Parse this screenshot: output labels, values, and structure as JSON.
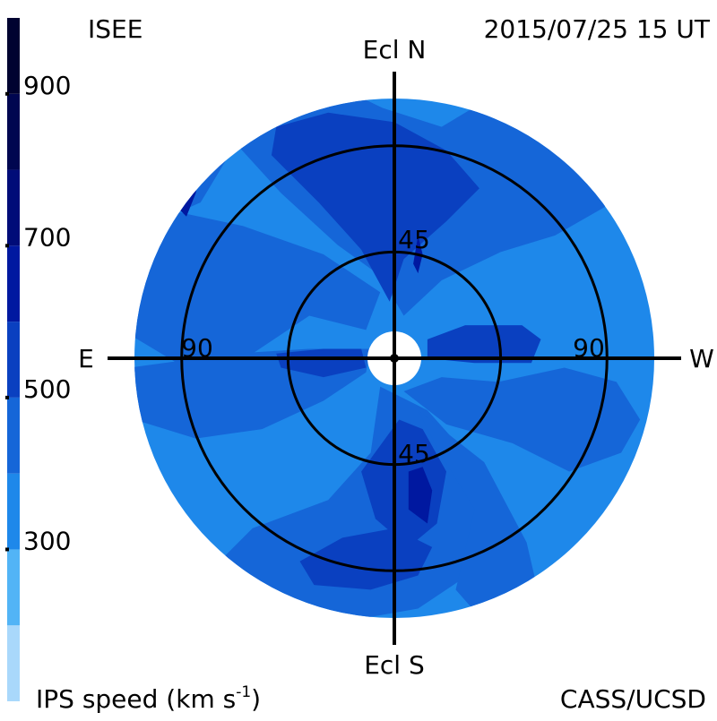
{
  "header": {
    "source": "ISEE",
    "timestamp": "2015/07/25 15 UT"
  },
  "footer": {
    "colorbar_label": "IPS speed (km s",
    "colorbar_unit_exp": "-1",
    "colorbar_label_end": ")",
    "credit": "CASS/UCSD"
  },
  "colors": {
    "background": "#ffffff",
    "axis_black": "#000000"
  },
  "chart_data": {
    "type": "heatmap",
    "projection": "polar sky map centred on the Sun",
    "axes": {
      "north": "Ecl N",
      "south": "Ecl S",
      "east": "E",
      "west": "W"
    },
    "elongation_rings": [
      {
        "value": 45,
        "labels": [
          "45",
          "45"
        ]
      },
      {
        "value": 90,
        "labels": [
          "90",
          "90"
        ]
      }
    ],
    "max_elongation": 110,
    "colorbar": {
      "tick_labels": [
        "900",
        "700",
        "500",
        "300"
      ],
      "tick_values": [
        900,
        700,
        500,
        300
      ],
      "range": [
        100,
        1000
      ],
      "bands": [
        {
          "from": 100,
          "to": 200,
          "color": "#a9d8fb"
        },
        {
          "from": 200,
          "to": 300,
          "color": "#52b4f6"
        },
        {
          "from": 300,
          "to": 400,
          "color": "#1e88ea"
        },
        {
          "from": 400,
          "to": 500,
          "color": "#1566d8"
        },
        {
          "from": 500,
          "to": 600,
          "color": "#0a40c0"
        },
        {
          "from": 600,
          "to": 700,
          "color": "#0018a0"
        },
        {
          "from": 700,
          "to": 800,
          "color": "#000c78"
        },
        {
          "from": 800,
          "to": 900,
          "color": "#000650"
        },
        {
          "from": 900,
          "to": 1000,
          "color": "#000230"
        }
      ]
    },
    "background_speed": 350,
    "regions": [
      {
        "name": "fast-lobe-north-west",
        "speed": 450,
        "points": [
          [
            -70,
            118
          ],
          [
            -36,
            121
          ],
          [
            -5,
            106
          ],
          [
            20,
            98
          ],
          [
            50,
            116
          ],
          [
            78,
            112
          ],
          [
            98,
            88
          ],
          [
            89,
            64
          ],
          [
            68,
            52
          ],
          [
            45,
            45
          ],
          [
            20,
            33
          ],
          [
            4,
            18
          ],
          [
            -6,
            35
          ],
          [
            -24,
            48
          ],
          [
            -48,
            70
          ],
          [
            -68,
            92
          ]
        ]
      },
      {
        "name": "fast-lobe-north-west-outer",
        "speed": 450,
        "points": [
          [
            -108,
            68
          ],
          [
            -114,
            98
          ],
          [
            -86,
            104
          ],
          [
            -70,
            86
          ],
          [
            -82,
            66
          ],
          [
            -100,
            58
          ]
        ]
      },
      {
        "name": "fast-lobe-north-east",
        "speed": 450,
        "points": [
          [
            -110,
            44
          ],
          [
            -112,
            10
          ],
          [
            -92,
            -2
          ],
          [
            -60,
            2
          ],
          [
            -36,
            18
          ],
          [
            -12,
            12
          ],
          [
            -6,
            28
          ],
          [
            -30,
            44
          ],
          [
            -64,
            56
          ],
          [
            -92,
            62
          ]
        ]
      },
      {
        "name": "fast-lobe-east",
        "speed": 450,
        "points": [
          [
            -112,
            -4
          ],
          [
            -110,
            -26
          ],
          [
            -84,
            -34
          ],
          [
            -56,
            -30
          ],
          [
            -30,
            -18
          ],
          [
            -12,
            -6
          ],
          [
            -10,
            4
          ],
          [
            -36,
            4
          ],
          [
            -68,
            2
          ]
        ]
      },
      {
        "name": "fast-lobe-south-west",
        "speed": 450,
        "points": [
          [
            4,
            -14
          ],
          [
            22,
            -28
          ],
          [
            50,
            -36
          ],
          [
            74,
            -48
          ],
          [
            96,
            -40
          ],
          [
            104,
            -26
          ],
          [
            94,
            -10
          ],
          [
            72,
            -4
          ],
          [
            44,
            -10
          ],
          [
            20,
            -8
          ]
        ]
      },
      {
        "name": "fast-lobe-south",
        "speed": 450,
        "points": [
          [
            -6,
            -12
          ],
          [
            -10,
            -40
          ],
          [
            -28,
            -60
          ],
          [
            -60,
            -72
          ],
          [
            -78,
            -90
          ],
          [
            -60,
            -108
          ],
          [
            -24,
            -112
          ],
          [
            10,
            -106
          ],
          [
            28,
            -94
          ],
          [
            40,
            -66
          ],
          [
            30,
            -40
          ],
          [
            14,
            -22
          ]
        ]
      },
      {
        "name": "fast-lobe-south-east",
        "speed": 450,
        "points": [
          [
            10,
            -22
          ],
          [
            38,
            -44
          ],
          [
            56,
            -78
          ],
          [
            62,
            -104
          ],
          [
            40,
            -114
          ],
          [
            26,
            -98
          ],
          [
            34,
            -64
          ],
          [
            18,
            -38
          ]
        ]
      },
      {
        "name": "faster-lobe-north",
        "speed": 550,
        "points": [
          [
            -52,
            86
          ],
          [
            -50,
            98
          ],
          [
            -28,
            104
          ],
          [
            0,
            100
          ],
          [
            22,
            88
          ],
          [
            36,
            72
          ],
          [
            22,
            58
          ],
          [
            4,
            42
          ],
          [
            -2,
            24
          ],
          [
            -14,
            46
          ],
          [
            -32,
            66
          ]
        ]
      },
      {
        "name": "faster-lobe-east",
        "speed": 550,
        "points": [
          [
            -50,
            2
          ],
          [
            -48,
            -4
          ],
          [
            -30,
            -8
          ],
          [
            -12,
            -4
          ],
          [
            -14,
            4
          ],
          [
            -30,
            4
          ]
        ]
      },
      {
        "name": "faster-lobe-west",
        "speed": 550,
        "points": [
          [
            14,
            8
          ],
          [
            30,
            14
          ],
          [
            54,
            14
          ],
          [
            62,
            8
          ],
          [
            58,
            -2
          ],
          [
            34,
            -2
          ],
          [
            14,
            0
          ]
        ]
      },
      {
        "name": "faster-lobe-south-inner",
        "speed": 550,
        "points": [
          [
            2,
            -26
          ],
          [
            -14,
            -48
          ],
          [
            -8,
            -68
          ],
          [
            6,
            -80
          ],
          [
            18,
            -70
          ],
          [
            22,
            -48
          ],
          [
            12,
            -30
          ]
        ]
      },
      {
        "name": "faster-lobe-south-outer",
        "speed": 550,
        "points": [
          [
            -40,
            -86
          ],
          [
            -34,
            -96
          ],
          [
            -10,
            -98
          ],
          [
            10,
            -92
          ],
          [
            16,
            -80
          ],
          [
            0,
            -72
          ],
          [
            -22,
            -76
          ]
        ]
      },
      {
        "name": "fastest-spot-north",
        "speed": 650,
        "points": [
          [
            8,
            40
          ],
          [
            10,
            52
          ],
          [
            12,
            44
          ],
          [
            10,
            36
          ]
        ]
      },
      {
        "name": "fastest-spot-north-east",
        "speed": 650,
        "points": [
          [
            -92,
            64
          ],
          [
            -86,
            80
          ],
          [
            -82,
            82
          ],
          [
            -84,
            70
          ],
          [
            -88,
            60
          ]
        ]
      },
      {
        "name": "fastest-spot-south",
        "speed": 650,
        "points": [
          [
            6,
            -48
          ],
          [
            6,
            -64
          ],
          [
            14,
            -70
          ],
          [
            16,
            -56
          ],
          [
            12,
            -46
          ]
        ]
      },
      {
        "name": "slow-edge-west",
        "speed": 250,
        "points": [
          [
            96,
            78
          ],
          [
            104,
            70
          ],
          [
            112,
            46
          ],
          [
            110,
            60
          ],
          [
            104,
            72
          ]
        ]
      }
    ]
  }
}
